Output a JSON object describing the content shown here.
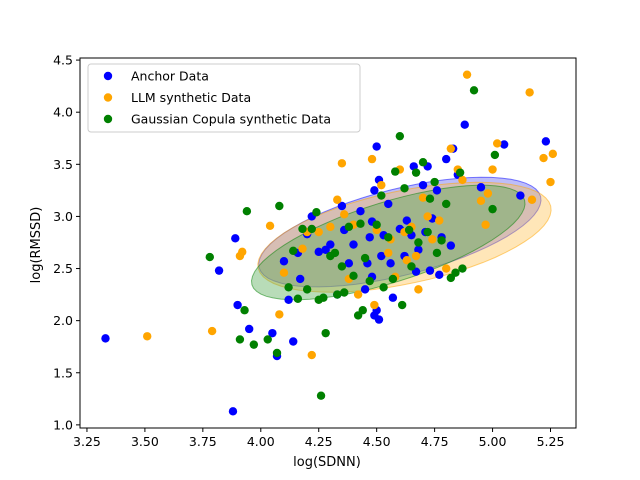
{
  "chart_data": {
    "type": "scatter",
    "xlabel": "log(SDNN)",
    "ylabel": "log(RMSSD)",
    "xlim": [
      3.22,
      5.36
    ],
    "ylim": [
      0.97,
      4.52
    ],
    "xticks": [
      "3.25",
      "3.50",
      "3.75",
      "4.00",
      "4.25",
      "4.50",
      "4.75",
      "5.00",
      "5.25"
    ],
    "yticks": [
      "1.0",
      "1.5",
      "2.0",
      "2.5",
      "3.0",
      "3.5",
      "4.0",
      "4.5"
    ],
    "legend_placement": "top-left",
    "grid": false,
    "series": [
      {
        "name": "Anchor Data",
        "color": "#0000ff",
        "ellipse": {
          "cx": 4.6,
          "cy": 2.85,
          "rx": 0.72,
          "ry": 0.36,
          "angle_deg": 38,
          "fill": "#5a5aee"
        },
        "points": [
          [
            3.33,
            1.83
          ],
          [
            3.88,
            1.13
          ],
          [
            3.89,
            2.79
          ],
          [
            3.9,
            2.15
          ],
          [
            3.82,
            2.48
          ],
          [
            3.95,
            1.92
          ],
          [
            4.05,
            1.88
          ],
          [
            4.07,
            1.66
          ],
          [
            4.1,
            2.57
          ],
          [
            4.12,
            2.2
          ],
          [
            4.14,
            1.8
          ],
          [
            4.16,
            2.65
          ],
          [
            4.17,
            2.4
          ],
          [
            4.2,
            2.83
          ],
          [
            4.22,
            3.0
          ],
          [
            4.25,
            2.66
          ],
          [
            4.28,
            2.68
          ],
          [
            4.3,
            2.73
          ],
          [
            4.33,
            2.25
          ],
          [
            4.35,
            3.1
          ],
          [
            4.36,
            2.87
          ],
          [
            4.38,
            2.55
          ],
          [
            4.4,
            2.73
          ],
          [
            4.43,
            3.05
          ],
          [
            4.45,
            2.3
          ],
          [
            4.46,
            2.55
          ],
          [
            4.47,
            2.8
          ],
          [
            4.48,
            2.42
          ],
          [
            4.49,
            3.25
          ],
          [
            4.5,
            2.1
          ],
          [
            4.51,
            3.35
          ],
          [
            4.52,
            2.62
          ],
          [
            4.53,
            2.82
          ],
          [
            4.55,
            3.12
          ],
          [
            4.56,
            2.55
          ],
          [
            4.57,
            2.22
          ],
          [
            4.6,
            2.88
          ],
          [
            4.62,
            2.62
          ],
          [
            4.63,
            2.96
          ],
          [
            4.65,
            2.82
          ],
          [
            4.66,
            3.48
          ],
          [
            4.67,
            2.47
          ],
          [
            4.68,
            2.68
          ],
          [
            4.7,
            3.3
          ],
          [
            4.71,
            2.85
          ],
          [
            4.72,
            3.48
          ],
          [
            4.73,
            2.48
          ],
          [
            4.74,
            2.98
          ],
          [
            4.76,
            3.25
          ],
          [
            4.77,
            2.44
          ],
          [
            4.78,
            2.8
          ],
          [
            4.8,
            3.55
          ],
          [
            4.82,
            2.72
          ],
          [
            4.83,
            3.65
          ],
          [
            4.85,
            3.4
          ],
          [
            4.88,
            3.88
          ],
          [
            4.95,
            3.28
          ],
          [
            5.05,
            3.69
          ],
          [
            5.12,
            3.2
          ],
          [
            5.23,
            3.72
          ],
          [
            4.5,
            3.67
          ],
          [
            4.51,
            2.01
          ],
          [
            4.49,
            2.05
          ],
          [
            4.48,
            2.95
          ]
        ]
      },
      {
        "name": "LLM synthetic Data",
        "color": "#ffa500",
        "ellipse": {
          "cx": 4.62,
          "cy": 2.8,
          "rx": 0.72,
          "ry": 0.4,
          "angle_deg": 35,
          "fill": "#ffc04d"
        },
        "points": [
          [
            3.51,
            1.85
          ],
          [
            3.79,
            1.9
          ],
          [
            3.91,
            2.62
          ],
          [
            3.92,
            2.66
          ],
          [
            4.04,
            2.91
          ],
          [
            4.08,
            2.06
          ],
          [
            4.1,
            2.46
          ],
          [
            4.18,
            2.69
          ],
          [
            4.2,
            2.85
          ],
          [
            4.22,
            1.67
          ],
          [
            4.25,
            2.85
          ],
          [
            4.3,
            2.9
          ],
          [
            4.33,
            3.16
          ],
          [
            4.35,
            3.51
          ],
          [
            4.36,
            3.02
          ],
          [
            4.38,
            2.4
          ],
          [
            4.4,
            2.92
          ],
          [
            4.42,
            2.25
          ],
          [
            4.48,
            3.55
          ],
          [
            4.49,
            2.15
          ],
          [
            4.5,
            2.87
          ],
          [
            4.52,
            3.3
          ],
          [
            4.55,
            2.65
          ],
          [
            4.58,
            2.42
          ],
          [
            4.6,
            3.45
          ],
          [
            4.62,
            2.85
          ],
          [
            4.63,
            2.58
          ],
          [
            4.65,
            2.9
          ],
          [
            4.67,
            2.62
          ],
          [
            4.7,
            3.18
          ],
          [
            4.72,
            3.0
          ],
          [
            4.74,
            2.78
          ],
          [
            4.77,
            2.96
          ],
          [
            4.8,
            2.5
          ],
          [
            4.82,
            3.65
          ],
          [
            4.85,
            3.45
          ],
          [
            4.87,
            3.35
          ],
          [
            4.89,
            4.36
          ],
          [
            4.95,
            3.15
          ],
          [
            4.97,
            2.92
          ],
          [
            4.98,
            3.22
          ],
          [
            5.0,
            3.45
          ],
          [
            5.02,
            3.7
          ],
          [
            5.16,
            4.19
          ],
          [
            5.17,
            3.16
          ],
          [
            5.22,
            3.56
          ],
          [
            5.25,
            3.33
          ],
          [
            5.26,
            3.6
          ],
          [
            4.56,
            2.78
          ],
          [
            4.68,
            2.3
          ]
        ]
      },
      {
        "name": "Gaussian Copula synthetic Data",
        "color": "#008000",
        "ellipse": {
          "cx": 4.55,
          "cy": 2.75,
          "rx": 0.74,
          "ry": 0.32,
          "angle_deg": 42,
          "fill": "#4ea84e"
        },
        "points": [
          [
            3.78,
            2.61
          ],
          [
            3.91,
            1.82
          ],
          [
            3.93,
            2.1
          ],
          [
            3.94,
            3.05
          ],
          [
            3.97,
            1.77
          ],
          [
            4.03,
            1.82
          ],
          [
            4.07,
            1.69
          ],
          [
            4.08,
            3.1
          ],
          [
            4.12,
            2.32
          ],
          [
            4.14,
            2.67
          ],
          [
            4.16,
            2.21
          ],
          [
            4.18,
            2.88
          ],
          [
            4.2,
            2.3
          ],
          [
            4.22,
            2.88
          ],
          [
            4.24,
            3.04
          ],
          [
            4.25,
            2.2
          ],
          [
            4.26,
            1.28
          ],
          [
            4.27,
            2.22
          ],
          [
            4.28,
            1.88
          ],
          [
            4.3,
            2.62
          ],
          [
            4.32,
            2.65
          ],
          [
            4.33,
            2.25
          ],
          [
            4.35,
            2.52
          ],
          [
            4.38,
            2.9
          ],
          [
            4.4,
            2.43
          ],
          [
            4.42,
            2.05
          ],
          [
            4.43,
            2.93
          ],
          [
            4.45,
            2.6
          ],
          [
            4.47,
            2.38
          ],
          [
            4.5,
            2.92
          ],
          [
            4.52,
            3.2
          ],
          [
            4.55,
            2.8
          ],
          [
            4.57,
            2.4
          ],
          [
            4.58,
            3.43
          ],
          [
            4.6,
            3.77
          ],
          [
            4.61,
            2.15
          ],
          [
            4.62,
            3.27
          ],
          [
            4.64,
            2.87
          ],
          [
            4.65,
            2.52
          ],
          [
            4.67,
            3.42
          ],
          [
            4.68,
            2.75
          ],
          [
            4.7,
            3.52
          ],
          [
            4.72,
            2.85
          ],
          [
            4.73,
            3.17
          ],
          [
            4.75,
            3.33
          ],
          [
            4.76,
            2.65
          ],
          [
            4.78,
            2.77
          ],
          [
            4.8,
            3.12
          ],
          [
            4.82,
            2.41
          ],
          [
            4.84,
            2.46
          ],
          [
            4.86,
            3.42
          ],
          [
            4.87,
            2.5
          ],
          [
            4.92,
            4.21
          ],
          [
            5.0,
            3.07
          ],
          [
            5.01,
            3.59
          ],
          [
            4.53,
            2.32
          ],
          [
            4.44,
            2.1
          ],
          [
            4.36,
            2.27
          ]
        ]
      }
    ]
  }
}
